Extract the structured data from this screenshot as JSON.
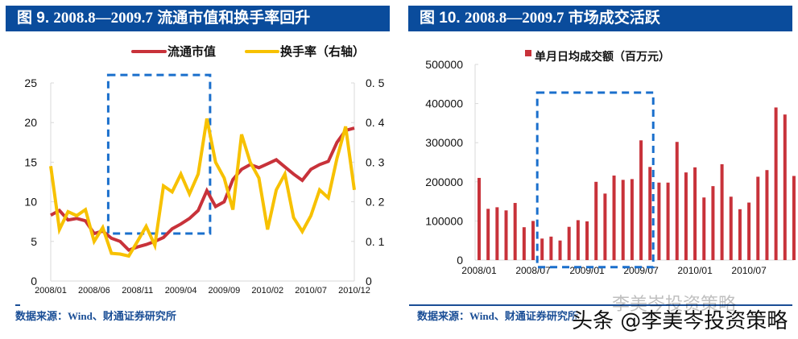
{
  "panels": [
    {
      "title_prefix": "图 9.",
      "title_range": "2008.8—2009.7",
      "title_text": "流通市值和换手率回升",
      "source": "数据来源：Wind、财通证券研究所"
    },
    {
      "title_prefix": "图 10.",
      "title_range": "2008.8—2009.7",
      "title_text": "市场成交活跃",
      "source": "数据来源：Wind、财通证券研究所"
    }
  ],
  "watermark": {
    "main": "头条 @李美岑投资策略",
    "faint": "李美岑投资策略"
  },
  "colors": {
    "title_bg": "#0a4c9c",
    "market_cap": "#c8323a",
    "turnover": "#f7c100",
    "bar": "#c8323a",
    "highlight_box": "#1a6fcc",
    "source_text": "#1a4e96"
  },
  "chart_data": [
    {
      "type": "line",
      "title": "2008.8—2009.7 流通市值和换手率回升",
      "x_tick_labels": [
        "2008/01",
        "2008/06",
        "2008/11",
        "2009/04",
        "2009/09",
        "2010/02",
        "2010/07",
        "2010/12"
      ],
      "y_left_ticks": [
        "0",
        "5",
        "10",
        "15",
        "20",
        "25"
      ],
      "y_right_ticks": [
        "0",
        "0. 1",
        "0. 2",
        "0. 3",
        "0. 4",
        "0. 5"
      ],
      "ylim_left": [
        0,
        25
      ],
      "ylim_right": [
        0,
        0.5
      ],
      "legend_position": "top-right",
      "highlight": {
        "x_start_month": 7,
        "x_end_month": 18,
        "y_low": 6,
        "y_high": 26
      },
      "series": [
        {
          "name": "流通市值",
          "axis": "left",
          "values": [
            8.3,
            8.9,
            7.7,
            7.9,
            7.6,
            6.0,
            6.3,
            5.4,
            5.0,
            3.9,
            4.3,
            4.6,
            5.0,
            5.5,
            6.6,
            7.2,
            7.9,
            8.9,
            11.4,
            9.4,
            10.0,
            12.8,
            14.1,
            14.7,
            14.3,
            14.8,
            15.3,
            14.4,
            13.5,
            12.7,
            14.1,
            14.7,
            15.1,
            17.5,
            19.0,
            19.3
          ]
        },
        {
          "name": "换手率（右轴）",
          "axis": "right",
          "values": [
            0.29,
            0.13,
            0.175,
            0.165,
            0.18,
            0.1,
            0.135,
            0.07,
            0.068,
            0.063,
            0.1,
            0.138,
            0.09,
            0.24,
            0.225,
            0.27,
            0.22,
            0.27,
            0.41,
            0.3,
            0.26,
            0.18,
            0.37,
            0.3,
            0.26,
            0.13,
            0.23,
            0.27,
            0.16,
            0.125,
            0.165,
            0.23,
            0.21,
            0.31,
            0.39,
            0.23
          ]
        }
      ]
    },
    {
      "type": "bar",
      "title": "2008.8—2009.7 市场成交活跃",
      "legend": "单月日均成交额（百万元）",
      "legend_position": "top-center",
      "x_tick_labels": [
        "2008/01",
        "2008/07",
        "2009/01",
        "2009/07",
        "2010/01",
        "2010/07"
      ],
      "y_ticks": [
        "0",
        "100000",
        "200000",
        "300000",
        "400000",
        "500000"
      ],
      "ylim": [
        0,
        500000
      ],
      "highlight": {
        "x_start_index": 7,
        "x_end_index": 19,
        "y_low": -18000,
        "y_high": 428000
      },
      "categories": [
        "2008/01",
        "2008/02",
        "2008/03",
        "2008/04",
        "2008/05",
        "2008/06",
        "2008/07",
        "2008/08",
        "2008/09",
        "2008/10",
        "2008/11",
        "2008/12",
        "2009/01",
        "2009/02",
        "2009/03",
        "2009/04",
        "2009/05",
        "2009/06",
        "2009/07",
        "2009/08",
        "2009/09",
        "2009/10",
        "2009/11",
        "2009/12",
        "2010/01",
        "2010/02",
        "2010/03",
        "2010/04",
        "2010/05",
        "2010/06",
        "2010/07",
        "2010/08",
        "2010/09",
        "2010/10",
        "2010/11",
        "2010/12"
      ],
      "values": [
        210000,
        131000,
        135000,
        127000,
        146000,
        84000,
        100000,
        55000,
        60000,
        50000,
        85000,
        102000,
        99000,
        200000,
        170000,
        216000,
        205000,
        207000,
        306000,
        238000,
        198000,
        198000,
        302000,
        224000,
        237000,
        160000,
        189000,
        245000,
        162000,
        130000,
        147000,
        213000,
        230000,
        390000,
        372000,
        215000
      ]
    }
  ]
}
